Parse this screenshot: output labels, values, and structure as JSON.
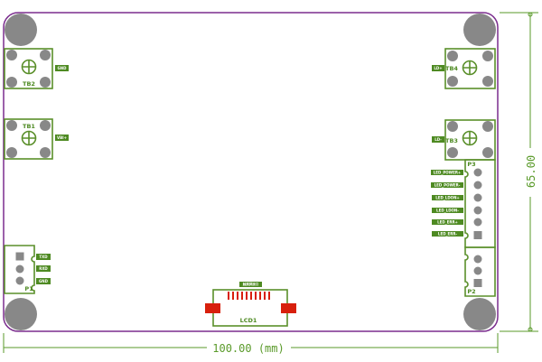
{
  "board": {
    "outline_color": "#7b2d8e",
    "silk_color": "#5a8f2a",
    "pad_color": "#d8200c",
    "hole_color": "#888888"
  },
  "dimensions": {
    "width_label": "100.00 (mm)",
    "height_label": "65.00"
  },
  "components": {
    "tb2": {
      "ref": "TB2",
      "net": "GND"
    },
    "tb1": {
      "ref": "TB1",
      "net": "VBI+"
    },
    "tb4": {
      "ref": "TB4",
      "net": "LD+"
    },
    "tb3": {
      "ref": "TB3",
      "net": "LD-"
    },
    "p3": {
      "ref": "P3",
      "pins": [
        "LED_POWER+",
        "LED_POWER-",
        "LED_LDON+",
        "LED_LDON-",
        "LED_ERR+",
        "LED_ERR-"
      ]
    },
    "p2": {
      "ref": "P2"
    },
    "p1": {
      "ref": "P1",
      "pins": [
        "TXD",
        "RXD",
        "GND"
      ]
    },
    "lcd": {
      "ref": "LCD1",
      "label": "触摸屏接口"
    }
  }
}
